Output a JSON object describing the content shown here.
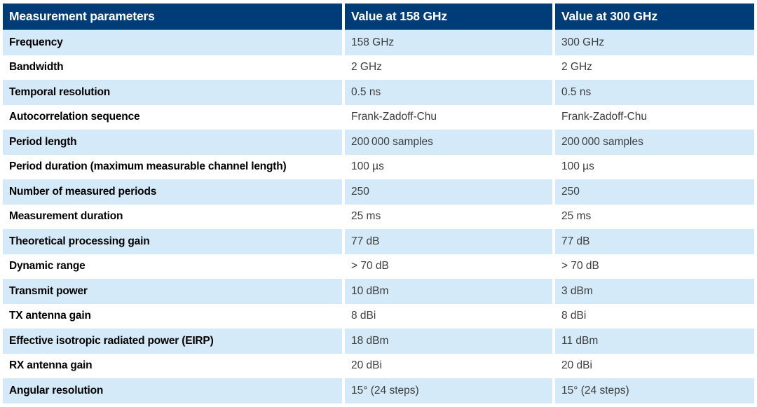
{
  "table": {
    "columns": [
      {
        "label": "Measurement parameters"
      },
      {
        "label": "Value at 158 GHz"
      },
      {
        "label": "Value at 300 GHz"
      }
    ],
    "rows": [
      {
        "parameter": "Frequency",
        "value_158": "158 GHz",
        "value_300": "300 GHz"
      },
      {
        "parameter": "Bandwidth",
        "value_158": "2 GHz",
        "value_300": "2 GHz"
      },
      {
        "parameter": "Temporal resolution",
        "value_158": "0.5 ns",
        "value_300": "0.5 ns"
      },
      {
        "parameter": "Autocorrelation sequence",
        "value_158": "Frank-Zadoff-Chu",
        "value_300": "Frank-Zadoff-Chu"
      },
      {
        "parameter": "Period length",
        "value_158": "200 000 samples",
        "value_300": "200 000 samples"
      },
      {
        "parameter": "Period duration (maximum measurable channel length)",
        "value_158": "100 µs",
        "value_300": "100 µs"
      },
      {
        "parameter": "Number of measured periods",
        "value_158": "250",
        "value_300": "250"
      },
      {
        "parameter": "Measurement duration",
        "value_158": "25 ms",
        "value_300": "25 ms"
      },
      {
        "parameter": "Theoretical processing gain",
        "value_158": "77 dB",
        "value_300": "77 dB"
      },
      {
        "parameter": "Dynamic range",
        "value_158": "> 70 dB",
        "value_300": "> 70 dB"
      },
      {
        "parameter": "Transmit power",
        "value_158": "10 dBm",
        "value_300": "3 dBm"
      },
      {
        "parameter": "TX antenna gain",
        "value_158": "8 dBi",
        "value_300": "8 dBi"
      },
      {
        "parameter": "Effective isotropic radiated power (EIRP)",
        "value_158": "18 dBm",
        "value_300": "11 dBm"
      },
      {
        "parameter": "RX antenna gain",
        "value_158": "20 dBi",
        "value_300": "20 dBi"
      },
      {
        "parameter": "Angular resolution",
        "value_158": "15° (24 steps)",
        "value_300": "15° (24 steps)"
      }
    ]
  },
  "colors": {
    "header_background": "#003c78",
    "header_text": "#ffffff",
    "row_alternate_background": "#d4eaf8",
    "row_background": "#ffffff",
    "parameter_text": "#000000",
    "value_text": "#3d3d3d",
    "header_bottom_border": "#4d7aaa",
    "page_background": "#ffffff"
  }
}
